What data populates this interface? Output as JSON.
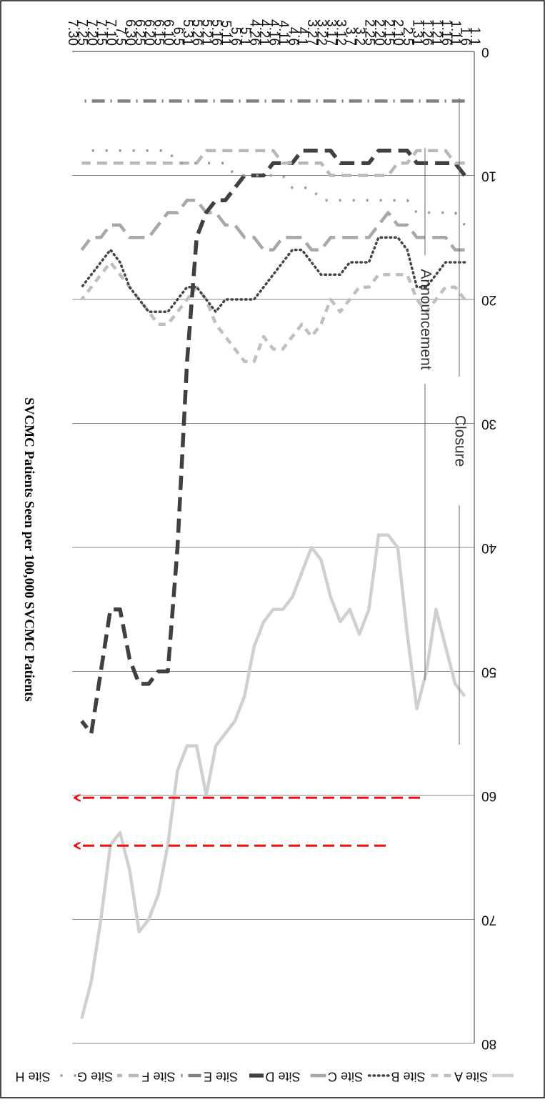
{
  "chart_data": {
    "type": "line",
    "ylabel": "SVCMC Patients Seen per 100,000 SVCMC Patients",
    "xlabel": "",
    "ylim": [
      0,
      80
    ],
    "yticks": [
      "0",
      "10",
      "20",
      "30",
      "40",
      "50",
      "60",
      "70",
      "80"
    ],
    "x_ticks": [
      "1.1",
      "1.6",
      "1.11",
      "1.16",
      "1.21",
      "1.26",
      "1.31",
      "2.5",
      "2.10",
      "2.15",
      "2.20",
      "2.25",
      "3.2",
      "3.7",
      "3.12",
      "3.17",
      "3.22",
      "3.27",
      "4.1",
      "4.6",
      "4.11",
      "4.16",
      "4.21",
      "4.26",
      "5.1",
      "5.6",
      "5.11",
      "5.16",
      "5.21",
      "5.26",
      "5.31",
      "6.5",
      "6.10",
      "6.15",
      "6.20",
      "6.25",
      "6.30",
      "7.5",
      "7.10",
      "7.15",
      "7.20",
      "7.25",
      "7.30"
    ],
    "grid": true,
    "legend_position": "top",
    "orientation": "rotated-180",
    "annotations": [
      {
        "text": "Announcement",
        "x": "4.6"
      },
      {
        "text": "Closure",
        "x": "5.1"
      }
    ],
    "series": [
      {
        "name": "Site A",
        "color": "#d0d0d0",
        "style": "solid",
        "x": [
          "1.6",
          "1.11",
          "1.16",
          "1.21",
          "1.26",
          "1.31",
          "2.5",
          "2.10",
          "2.15",
          "2.20",
          "2.25",
          "3.2",
          "3.7",
          "3.12",
          "3.17",
          "3.22",
          "3.27",
          "4.1",
          "4.6",
          "4.11",
          "4.16",
          "4.21",
          "4.26",
          "5.1",
          "5.6",
          "5.11",
          "5.16",
          "5.21",
          "5.26",
          "5.31",
          "6.5",
          "6.10",
          "6.15",
          "6.20",
          "6.25",
          "6.30",
          "7.5",
          "7.10",
          "7.15",
          "7.20",
          "7.25"
        ],
        "values": [
          52,
          51,
          48,
          45,
          50,
          53,
          47,
          40,
          39,
          39,
          45,
          47,
          45,
          46,
          44,
          41,
          40,
          42,
          44,
          45,
          45,
          46,
          48,
          52,
          54,
          55,
          56,
          60,
          56,
          56,
          58,
          64,
          68,
          70,
          71,
          66,
          63,
          64,
          70,
          75,
          78
        ]
      },
      {
        "name": "Site B",
        "color": "#bfbfbf",
        "style": "dash",
        "x": [
          "1.6",
          "1.11",
          "1.16",
          "1.21",
          "1.26",
          "1.31",
          "2.5",
          "2.10",
          "2.15",
          "2.20",
          "2.25",
          "3.2",
          "3.7",
          "3.12",
          "3.17",
          "3.22",
          "3.27",
          "4.1",
          "4.6",
          "4.11",
          "4.16",
          "4.21",
          "4.26",
          "5.1",
          "5.6",
          "5.11",
          "5.16",
          "5.21",
          "5.26",
          "5.31",
          "6.5",
          "6.10",
          "6.15",
          "6.20",
          "6.25",
          "6.30",
          "7.5",
          "7.10",
          "7.15",
          "7.20",
          "7.25"
        ],
        "values": [
          20,
          19,
          19,
          20,
          21,
          20,
          18,
          18,
          18,
          18,
          19,
          19,
          20,
          21,
          20,
          22,
          23,
          22,
          23,
          24,
          24,
          23,
          25,
          25,
          24,
          23,
          22,
          20,
          19,
          20,
          21,
          22,
          22,
          21,
          20,
          19,
          18,
          17,
          18,
          19,
          20
        ]
      },
      {
        "name": "Site C",
        "color": "#444444",
        "style": "dot",
        "x": [
          "1.6",
          "1.11",
          "1.16",
          "1.21",
          "1.26",
          "1.31",
          "2.5",
          "2.10",
          "2.15",
          "2.20",
          "2.25",
          "3.2",
          "3.7",
          "3.12",
          "3.17",
          "3.22",
          "3.27",
          "4.1",
          "4.6",
          "4.11",
          "4.16",
          "4.21",
          "4.26",
          "5.1",
          "5.6",
          "5.11",
          "5.16",
          "5.21",
          "5.26",
          "5.31",
          "6.5",
          "6.10",
          "6.15",
          "6.20",
          "6.25",
          "6.30",
          "7.5",
          "7.10",
          "7.15",
          "7.20",
          "7.25"
        ],
        "values": [
          17,
          17,
          17,
          18,
          19,
          19,
          16,
          15,
          15,
          15,
          17,
          17,
          17,
          18,
          18,
          18,
          17,
          16,
          16,
          17,
          18,
          19,
          20,
          20,
          20,
          20,
          21,
          20,
          19,
          19,
          20,
          21,
          21,
          21,
          20,
          19,
          17,
          16,
          17,
          18,
          19
        ]
      },
      {
        "name": "Site D",
        "color": "#a8a8a8",
        "style": "longdash",
        "x": [
          "1.6",
          "1.11",
          "1.16",
          "1.21",
          "1.26",
          "1.31",
          "2.5",
          "2.10",
          "2.15",
          "2.20",
          "2.25",
          "3.2",
          "3.7",
          "3.12",
          "3.17",
          "3.22",
          "3.27",
          "4.1",
          "4.6",
          "4.11",
          "4.16",
          "4.21",
          "4.26",
          "5.1",
          "5.6",
          "5.11",
          "5.16",
          "5.21",
          "5.26",
          "5.31",
          "6.5",
          "6.10",
          "6.15",
          "6.20",
          "6.25",
          "6.30",
          "7.5",
          "7.10",
          "7.15",
          "7.20",
          "7.25"
        ],
        "values": [
          16,
          16,
          15,
          15,
          15,
          15,
          14,
          14,
          13,
          14,
          15,
          15,
          15,
          15,
          15,
          16,
          16,
          15,
          15,
          15,
          16,
          16,
          15,
          15,
          14,
          14,
          13,
          13,
          12,
          12,
          13,
          13,
          14,
          15,
          15,
          15,
          14,
          14,
          15,
          15,
          16
        ]
      },
      {
        "name": "Site E",
        "color": "#404040",
        "style": "longdash-heavy",
        "x": [
          "1.6",
          "1.11",
          "1.16",
          "1.21",
          "1.26",
          "1.31",
          "2.5",
          "2.10",
          "2.15",
          "2.20",
          "2.25",
          "3.2",
          "3.7",
          "3.12",
          "3.17",
          "3.22",
          "3.27",
          "4.1",
          "4.6",
          "4.11",
          "4.16",
          "4.21",
          "4.26",
          "5.1",
          "5.6",
          "5.11",
          "5.16",
          "5.21",
          "5.26",
          "5.31",
          "6.5",
          "6.10",
          "6.15",
          "6.20",
          "6.25",
          "6.30",
          "7.5",
          "7.10",
          "7.15",
          "7.20",
          "7.25"
        ],
        "values": [
          10,
          9,
          9,
          9,
          9,
          9,
          8,
          8,
          8,
          8,
          9,
          9,
          9,
          9,
          8,
          8,
          8,
          8,
          9,
          9,
          9,
          10,
          10,
          10,
          11,
          12,
          12,
          13,
          15,
          25,
          40,
          50,
          50,
          51,
          51,
          49,
          45,
          45,
          50,
          55,
          54
        ]
      },
      {
        "name": "Site F",
        "color": "#808080",
        "style": "dashdot",
        "x": [
          "1.6",
          "1.11",
          "1.16",
          "1.21",
          "1.26",
          "1.31",
          "2.5",
          "2.10",
          "2.15",
          "2.20",
          "2.25",
          "3.2",
          "3.7",
          "3.12",
          "3.17",
          "3.22",
          "3.27",
          "4.1",
          "4.6",
          "4.11",
          "4.16",
          "4.21",
          "4.26",
          "5.1",
          "5.6",
          "5.11",
          "5.16",
          "5.21",
          "5.26",
          "5.31",
          "6.5",
          "6.10",
          "6.15",
          "6.20",
          "6.25",
          "6.30",
          "7.5",
          "7.10",
          "7.15",
          "7.20",
          "7.25"
        ],
        "values": [
          4,
          4,
          4,
          4,
          4,
          4,
          4,
          4,
          4,
          4,
          4,
          4,
          4,
          4,
          4,
          4,
          4,
          4,
          4,
          4,
          4,
          4,
          4,
          4,
          4,
          4,
          4,
          4,
          4,
          4,
          4,
          4,
          4,
          4,
          4,
          4,
          4,
          4,
          4,
          4,
          4
        ]
      },
      {
        "name": "Site G",
        "color": "#b8b8b8",
        "style": "dash-light",
        "x": [
          "1.6",
          "1.11",
          "1.16",
          "1.21",
          "1.26",
          "1.31",
          "2.5",
          "2.10",
          "2.15",
          "2.20",
          "2.25",
          "3.2",
          "3.7",
          "3.12",
          "3.17",
          "3.22",
          "3.27",
          "4.1",
          "4.6",
          "4.11",
          "4.16",
          "4.21",
          "4.26",
          "5.1",
          "5.6",
          "5.11",
          "5.16",
          "5.21",
          "5.26",
          "5.31",
          "6.5",
          "6.10",
          "6.15",
          "6.20",
          "6.25",
          "6.30",
          "7.5",
          "7.10",
          "7.15",
          "7.20",
          "7.25"
        ],
        "values": [
          9,
          9,
          8,
          8,
          8,
          8,
          9,
          9,
          10,
          10,
          10,
          10,
          10,
          10,
          10,
          9,
          9,
          9,
          9,
          9,
          8,
          8,
          8,
          8,
          8,
          8,
          8,
          8,
          9,
          9,
          9,
          9,
          9,
          9,
          9,
          9,
          9,
          9,
          9,
          9,
          9
        ]
      },
      {
        "name": "Site H",
        "color": "#999999",
        "style": "sparse-dashdot",
        "x": [
          "1.6",
          "1.11",
          "1.16",
          "1.21",
          "1.26",
          "1.31",
          "2.5",
          "2.10",
          "2.15",
          "2.20",
          "2.25",
          "3.2",
          "3.7",
          "3.12",
          "3.17",
          "3.22",
          "3.27",
          "4.1",
          "4.6",
          "4.11",
          "4.16",
          "4.21",
          "4.26",
          "5.1",
          "5.6",
          "5.11",
          "5.16",
          "5.21",
          "5.26",
          "5.31",
          "6.5",
          "6.10",
          "6.15",
          "6.20",
          "6.25",
          "6.30",
          "7.5",
          "7.10",
          "7.15",
          "7.20",
          "7.25"
        ],
        "values": [
          14,
          13,
          13,
          13,
          13,
          13,
          12,
          12,
          12,
          12,
          12,
          12,
          12,
          12,
          12,
          12,
          11,
          11,
          11,
          10,
          10,
          10,
          10,
          10,
          10,
          9,
          9,
          9,
          9,
          9,
          9,
          8,
          8,
          8,
          8,
          8,
          8,
          8,
          8,
          8,
          8
        ]
      }
    ]
  }
}
